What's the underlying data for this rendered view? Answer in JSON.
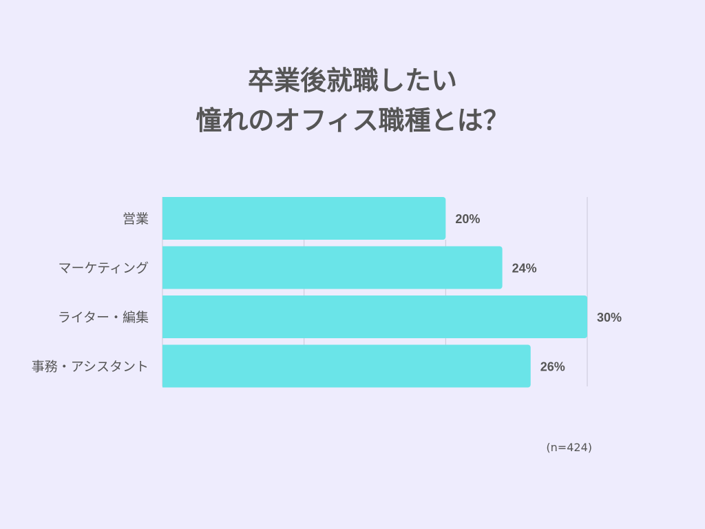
{
  "title": {
    "line1": "卒業後就職したい",
    "line2": "憧れのオフィス職種とは？"
  },
  "note": "(n=424)",
  "colors": {
    "background": "#eeecfd",
    "bar": "#6ae4e8",
    "text": "#555555",
    "grid": "#c9c7d9"
  },
  "chart_data": {
    "type": "bar",
    "orientation": "horizontal",
    "categories": [
      "営業",
      "マーケティング",
      "ライター・編集",
      "事務・アシスタント"
    ],
    "values": [
      20,
      24,
      30,
      26
    ],
    "value_labels": [
      "20%",
      "24%",
      "30%",
      "26%"
    ],
    "unit": "%",
    "xlim": [
      0,
      30
    ],
    "grid": true,
    "legend": "none"
  }
}
